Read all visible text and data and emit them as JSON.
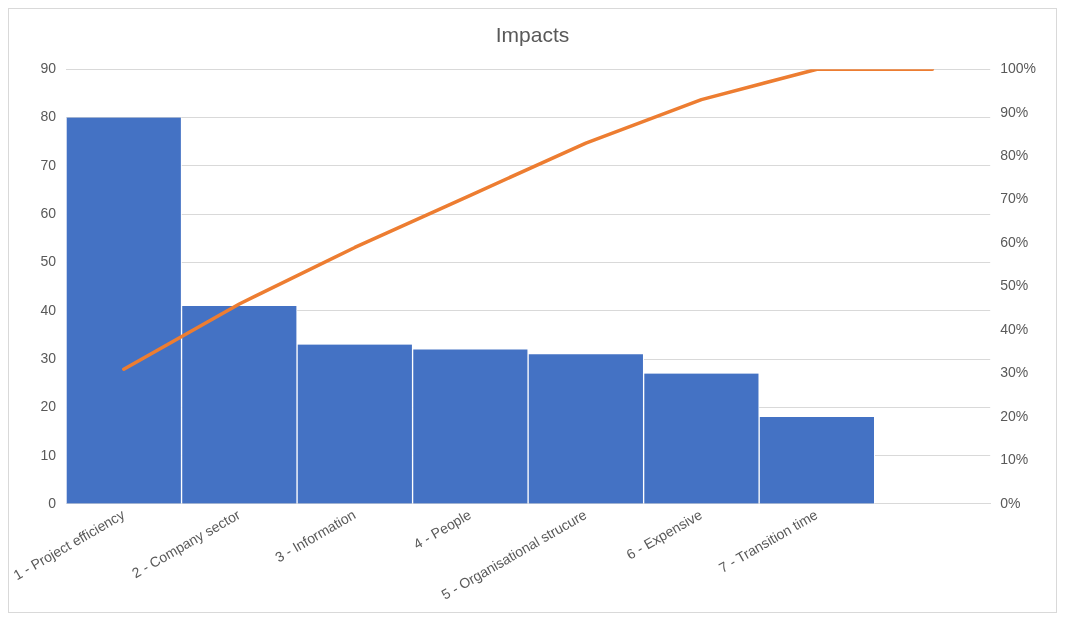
{
  "chart_data": {
    "type": "bar",
    "title": "Impacts",
    "categories": [
      "1 - Project efficiency",
      "2 - Company sector",
      "3 - Information",
      "4 - People",
      "5 - Organisational strucure",
      "6 - Expensive",
      "7 - Transition time",
      null
    ],
    "series": [
      {
        "color": "#4472c4",
        "values": [
          80,
          41,
          33,
          32,
          31,
          27,
          18,
          0
        ]
      },
      {
        "type": "line",
        "color": "#ed7d31",
        "axis": "y2",
        "marker": "none",
        "values": [
          31,
          46,
          59,
          71,
          83,
          93,
          100,
          100
        ]
      }
    ],
    "ylim": [
      0,
      90
    ],
    "yticks": [
      0,
      10,
      20,
      30,
      40,
      50,
      60,
      70,
      80,
      90
    ],
    "y2lim": [
      0,
      100
    ],
    "y2ticks": [
      {
        "value": 0,
        "label": "0%"
      },
      {
        "value": 10,
        "label": "10%"
      },
      {
        "value": 20,
        "label": "20%"
      },
      {
        "value": 30,
        "label": "30%"
      },
      {
        "value": 40,
        "label": "40%"
      },
      {
        "value": 50,
        "label": "50%"
      },
      {
        "value": 60,
        "label": "60%"
      },
      {
        "value": 70,
        "label": "70%"
      },
      {
        "value": 80,
        "label": "80%"
      },
      {
        "value": 90,
        "label": "90%"
      },
      {
        "value": 100,
        "label": "100%"
      }
    ],
    "grid": "y",
    "legend": false
  }
}
